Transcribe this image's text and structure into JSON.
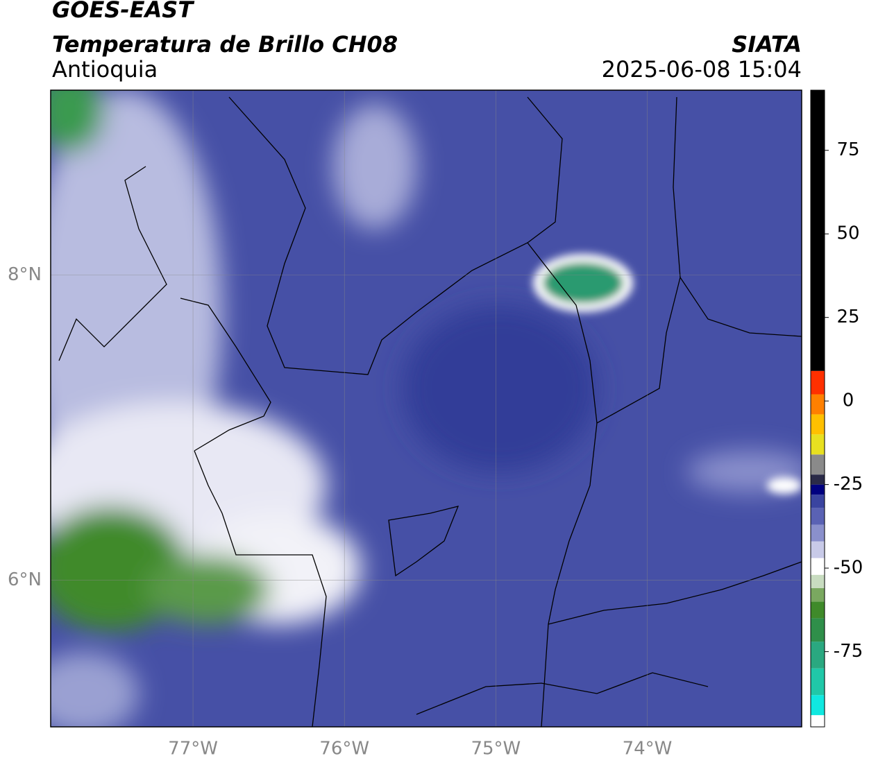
{
  "header": {
    "satellite": "GOES-EAST",
    "product": "Temperatura de Brillo CH08",
    "region": "Antioquia",
    "agency": "SIATA",
    "datetime": "2025-06-08 15:04"
  },
  "map": {
    "xlim": [
      -77.94,
      -72.98
    ],
    "ylim": [
      5.04,
      9.21
    ],
    "grid": true,
    "xticks": [
      {
        "value": -77,
        "label": "77°W"
      },
      {
        "value": -76,
        "label": "76°W"
      },
      {
        "value": -75,
        "label": "75°W"
      },
      {
        "value": -74,
        "label": "74°W"
      }
    ],
    "yticks": [
      {
        "value": 6,
        "label": "6°N"
      },
      {
        "value": 8,
        "label": "8°N"
      }
    ]
  },
  "colorbar": {
    "lim": [
      -97.5,
      93
    ],
    "ticks": [
      -75,
      -50,
      -25,
      0,
      25,
      50,
      75
    ],
    "stops": [
      {
        "value": -97.5,
        "color": "#ffffff"
      },
      {
        "value": -94,
        "color": "#10e8e0"
      },
      {
        "value": -88,
        "color": "#20c8a8"
      },
      {
        "value": -80,
        "color": "#2aa880"
      },
      {
        "value": -72,
        "color": "#2f8f4a"
      },
      {
        "value": -65,
        "color": "#3f8a2a"
      },
      {
        "value": -60,
        "color": "#7aa860"
      },
      {
        "value": -56,
        "color": "#c8dcc0"
      },
      {
        "value": -52,
        "color": "#ffffff"
      },
      {
        "value": -47,
        "color": "#c8cae8"
      },
      {
        "value": -42,
        "color": "#8a90cc"
      },
      {
        "value": -37,
        "color": "#5a62b4"
      },
      {
        "value": -32,
        "color": "#3a44a0"
      },
      {
        "value": -28,
        "color": "#000080"
      },
      {
        "value": -25,
        "color": "#2a2a48"
      },
      {
        "value": -22,
        "color": "#8a8a8a"
      },
      {
        "value": -16,
        "color": "#e8e020"
      },
      {
        "value": -10,
        "color": "#ffc000"
      },
      {
        "value": -4,
        "color": "#ff8000"
      },
      {
        "value": 2,
        "color": "#ff3000"
      },
      {
        "value": 9,
        "color": "#000000"
      }
    ]
  }
}
